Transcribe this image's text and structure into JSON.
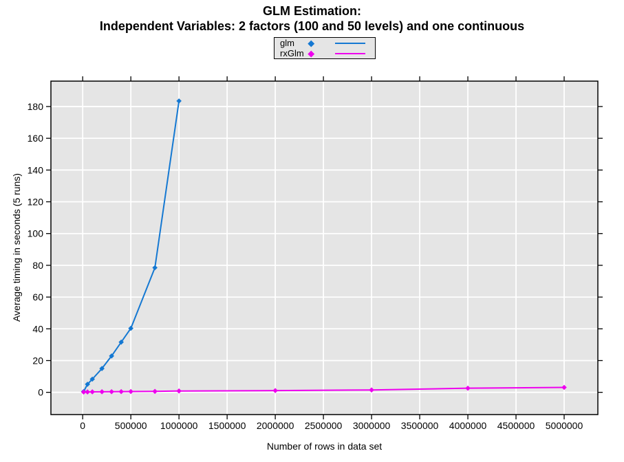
{
  "page": {
    "background": "#FFFFFF",
    "text_color": "#000000"
  },
  "chart_data": {
    "type": "line",
    "title": "GLM Estimation: Independent Variables: 2 factors (100 and 50 levels) and one continuous",
    "title_line1": "GLM Estimation:",
    "title_line2": "Independent Variables: 2 factors (100 and 50 levels) and one continuous",
    "xlabel": "Number of rows in data set",
    "ylabel": "Average timing in seconds (5 runs)",
    "x_ticks": [
      0,
      500000,
      1000000,
      1500000,
      2000000,
      2500000,
      3000000,
      3500000,
      4000000,
      4500000,
      5000000
    ],
    "y_ticks": [
      0,
      20,
      40,
      60,
      80,
      100,
      120,
      140,
      160,
      180
    ],
    "xlim": [
      -330000,
      5350000
    ],
    "ylim": [
      -14,
      196
    ],
    "grid": true,
    "grid_color": "#FFFFFF",
    "panel_background": "#E5E5E5",
    "border_color": "#000000",
    "legend_position": "top-center",
    "series": [
      {
        "name": "glm",
        "color": "#1478D2",
        "marker": "diamond",
        "x": [
          10000,
          50000,
          100000,
          200000,
          300000,
          400000,
          500000,
          750000,
          1000000
        ],
        "y": [
          0.5,
          5.1,
          8.3,
          15.0,
          22.9,
          31.6,
          40.3,
          78.5,
          183.5
        ]
      },
      {
        "name": "rxGlm",
        "color": "#EE00EE",
        "marker": "diamond",
        "x": [
          10000,
          50000,
          100000,
          200000,
          300000,
          400000,
          500000,
          750000,
          1000000,
          2000000,
          3000000,
          4000000,
          5000000
        ],
        "y": [
          0.2,
          0.25,
          0.3,
          0.35,
          0.4,
          0.45,
          0.5,
          0.6,
          0.85,
          1.1,
          1.5,
          2.6,
          3.1
        ]
      }
    ]
  }
}
